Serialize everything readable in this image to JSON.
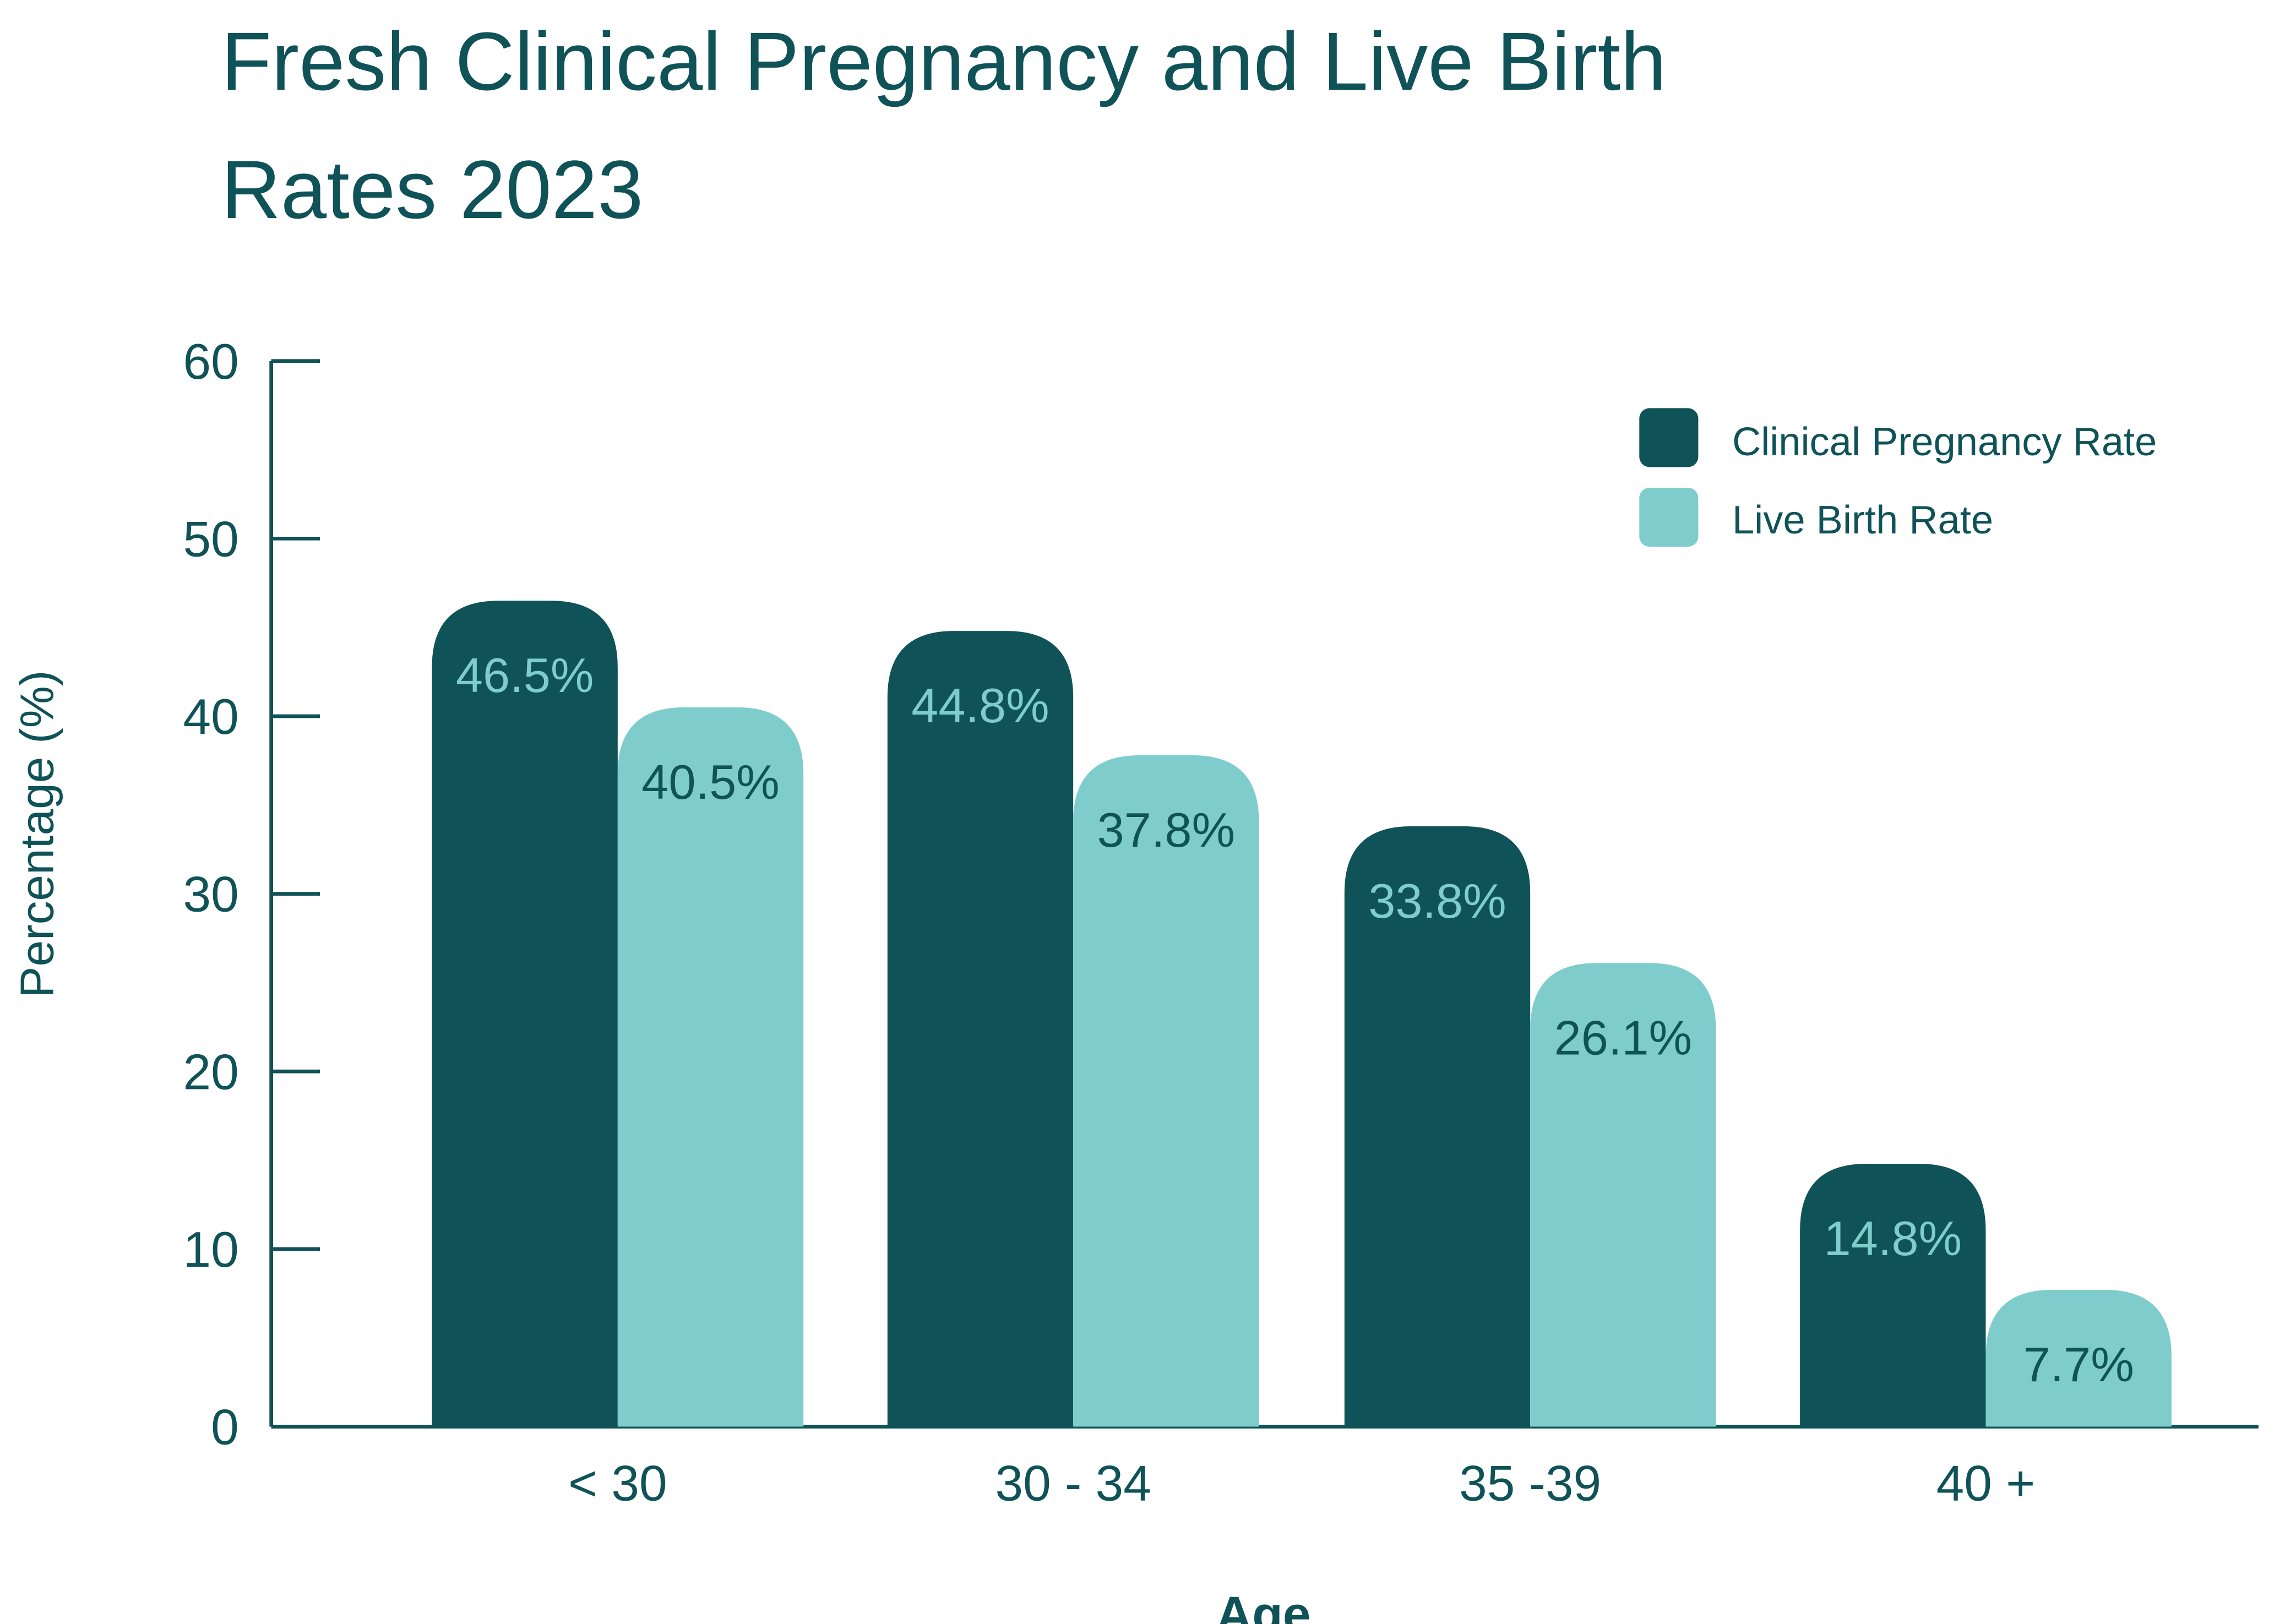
{
  "chart_data": {
    "type": "bar",
    "title": "Fresh Clinical Pregnancy and Live Birth Rates 2023",
    "title_lines": [
      "Fresh Clinical Pregnancy and Live Birth",
      "Rates 2023"
    ],
    "xlabel": "Age",
    "ylabel": "Percentage (%)",
    "categories": [
      "< 30",
      "30 - 34",
      "35 -39",
      "40 +"
    ],
    "ylim": [
      0,
      60
    ],
    "yticks": [
      0,
      10,
      20,
      30,
      40,
      50,
      60
    ],
    "grid": false,
    "legend_position": "top-right",
    "series": [
      {
        "name": "Clinical Pregnancy Rate",
        "color": "#0f5257",
        "label_color": "#7ecdcc",
        "values": [
          46.5,
          44.8,
          33.8,
          14.8
        ],
        "labels": [
          "46.5%",
          "44.8%",
          "33.8%",
          "14.8%"
        ]
      },
      {
        "name": "Live Birth Rate",
        "color": "#7ecdcc",
        "label_color": "#0f5257",
        "values": [
          40.5,
          37.8,
          26.1,
          7.7
        ],
        "labels": [
          "40.5%",
          "37.8%",
          "26.1%",
          "7.7%"
        ]
      }
    ]
  }
}
